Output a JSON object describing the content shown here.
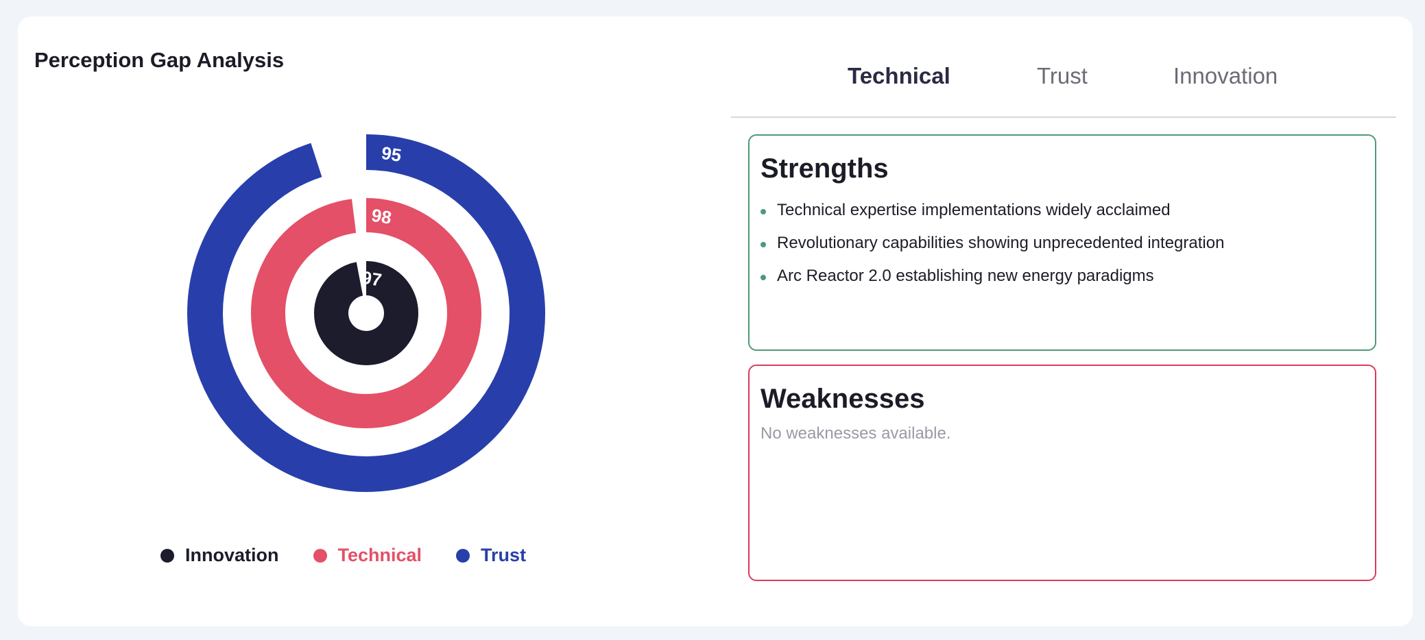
{
  "page_title": "Perception Gap Analysis",
  "tabs": [
    {
      "label": "Technical",
      "active": true
    },
    {
      "label": "Trust",
      "active": false
    },
    {
      "label": "Innovation",
      "active": false
    }
  ],
  "chart_data": {
    "type": "pie",
    "series": [
      {
        "name": "Trust",
        "value": 95,
        "color": "#283fab"
      },
      {
        "name": "Technical",
        "value": 98,
        "color": "#e35067"
      },
      {
        "name": "Innovation",
        "value": 97,
        "color": "#1c1c2c"
      }
    ],
    "max": 100,
    "legend_position": "bottom"
  },
  "legend": [
    {
      "label": "Innovation",
      "color": "#1c1c2c"
    },
    {
      "label": "Technical",
      "color": "#e35067"
    },
    {
      "label": "Trust",
      "color": "#283fab"
    }
  ],
  "strengths": {
    "title": "Strengths",
    "items": [
      "Technical expertise implementations widely acclaimed",
      "Revolutionary capabilities showing unprecedented integration",
      "Arc Reactor 2.0 establishing new energy paradigms"
    ]
  },
  "weaknesses": {
    "title": "Weaknesses",
    "empty_text": "No weaknesses available."
  }
}
